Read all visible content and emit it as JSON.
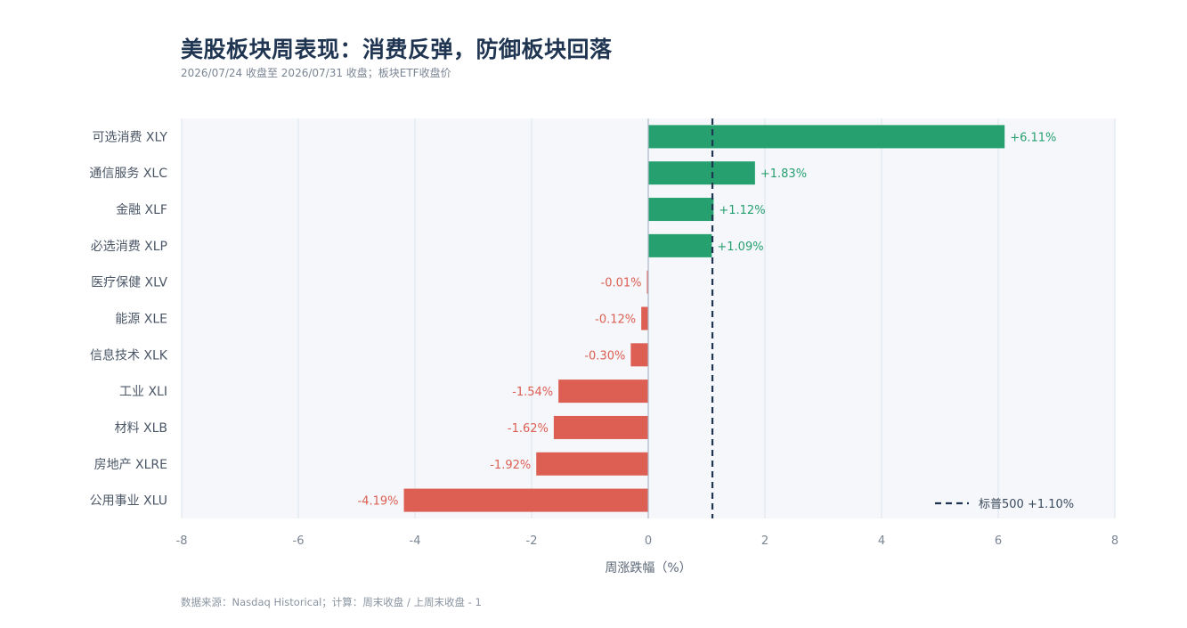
{
  "header": {
    "title": "美股板块周表现：消费反弹，防御板块回落",
    "subtitle": "2026/07/24 收盘至 2026/07/31 收盘；板块ETF收盘价"
  },
  "footer": {
    "source": "数据来源：Nasdaq Historical；计算：周末收盘 / 上周末收盘 - 1"
  },
  "colors": {
    "positive": "#26a06f",
    "negative": "#dd5f53",
    "reference": "#1f3552",
    "plot_bg": "#f5f7fb",
    "grid": "#dde3ec"
  },
  "chart_data": {
    "type": "bar",
    "orientation": "horizontal",
    "title": "美股板块周表现：消费反弹，防御板块回落",
    "subtitle": "2026/07/24 收盘至 2026/07/31 收盘；板块ETF收盘价",
    "xlabel": "周涨跌幅（%）",
    "ylabel": "",
    "xlim": [
      -8,
      8
    ],
    "xticks": [
      -8,
      -6,
      -4,
      -2,
      0,
      2,
      4,
      6,
      8
    ],
    "grid": true,
    "categories": [
      "可选消费  XLY",
      "通信服务  XLC",
      "金融  XLF",
      "必选消费  XLP",
      "医疗保健  XLV",
      "能源  XLE",
      "信息技术  XLK",
      "工业  XLI",
      "材料  XLB",
      "房地产  XLRE",
      "公用事业  XLU"
    ],
    "values": [
      6.11,
      1.83,
      1.12,
      1.09,
      -0.01,
      -0.12,
      -0.3,
      -1.54,
      -1.62,
      -1.92,
      -4.19
    ],
    "data_labels": [
      "+6.11%",
      "+1.83%",
      "+1.12%",
      "+1.09%",
      "-0.01%",
      "-0.12%",
      "-0.30%",
      "-1.54%",
      "-1.62%",
      "-1.92%",
      "-4.19%"
    ],
    "reference_line": {
      "value": 1.1,
      "label": "标普500 +1.10%",
      "style": "dashed"
    },
    "legend": {
      "position": "bottom-right"
    }
  }
}
